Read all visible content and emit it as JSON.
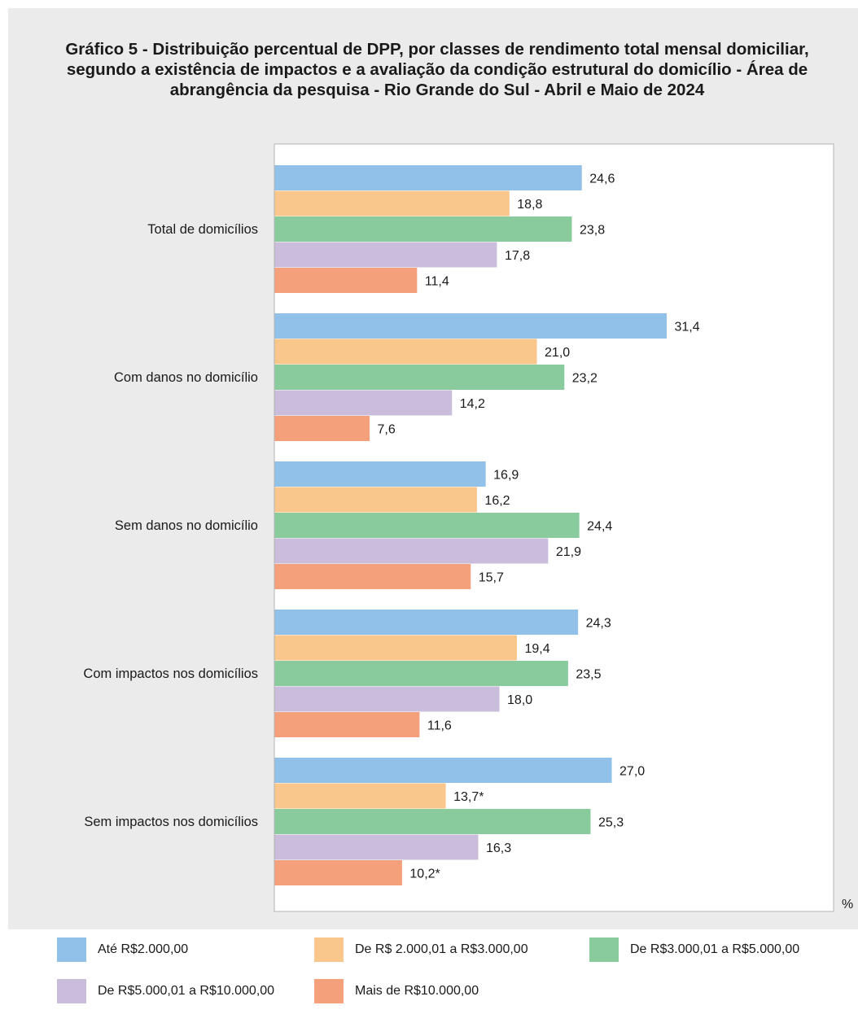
{
  "chart_data": {
    "type": "bar",
    "orientation": "horizontal",
    "title": "Gráfico 5 - Distribuição percentual de DPP, por classes de rendimento total mensal domiciliar, segundo a existência de impactos e a avaliação da condição estrutural do domicílio - Área de abrangência da pesquisa - Rio Grande do Sul - Abril e Maio de 2024",
    "unit_label": "%",
    "categories": [
      "Total de domicílios",
      "Com danos no domicílio",
      "Sem danos no domicílio",
      "Com impactos nos domicílios",
      "Sem impactos nos domicílios"
    ],
    "series": [
      {
        "name": "Até R$2.000,00",
        "color": "#91c1e8",
        "values": [
          24.6,
          31.4,
          16.9,
          24.3,
          27.0
        ],
        "labels": [
          "24,6",
          "31,4",
          "16,9",
          "24,3",
          "27,0"
        ]
      },
      {
        "name": "De R$ 2.000,01 a R$3.000,00",
        "color": "#f9c68b",
        "values": [
          18.8,
          21.0,
          16.2,
          19.4,
          13.7
        ],
        "labels": [
          "18,8",
          "21,0",
          "16,2",
          "19,4",
          "13,7*"
        ]
      },
      {
        "name": "De R$3.000,01 a R$5.000,00",
        "color": "#89cb9d",
        "values": [
          23.8,
          23.2,
          24.4,
          23.5,
          25.3
        ],
        "labels": [
          "23,8",
          "23,2",
          "24,4",
          "23,5",
          "25,3"
        ]
      },
      {
        "name": "De R$5.000,01 a R$10.000,00",
        "color": "#c9bddb",
        "values": [
          17.8,
          14.2,
          21.9,
          18.0,
          16.3
        ],
        "labels": [
          "17,8",
          "14,2",
          "21,9",
          "18,0",
          "16,3"
        ]
      },
      {
        "name": "Mais de R$10.000,00",
        "color": "#f4a07a",
        "values": [
          11.4,
          7.6,
          15.7,
          11.6,
          10.2
        ],
        "labels": [
          "11,4",
          "7,6",
          "15,7",
          "11,6",
          "10,2*"
        ]
      }
    ],
    "xlim": [
      0,
      44.8
    ],
    "grid": false,
    "legend_position": "bottom"
  }
}
